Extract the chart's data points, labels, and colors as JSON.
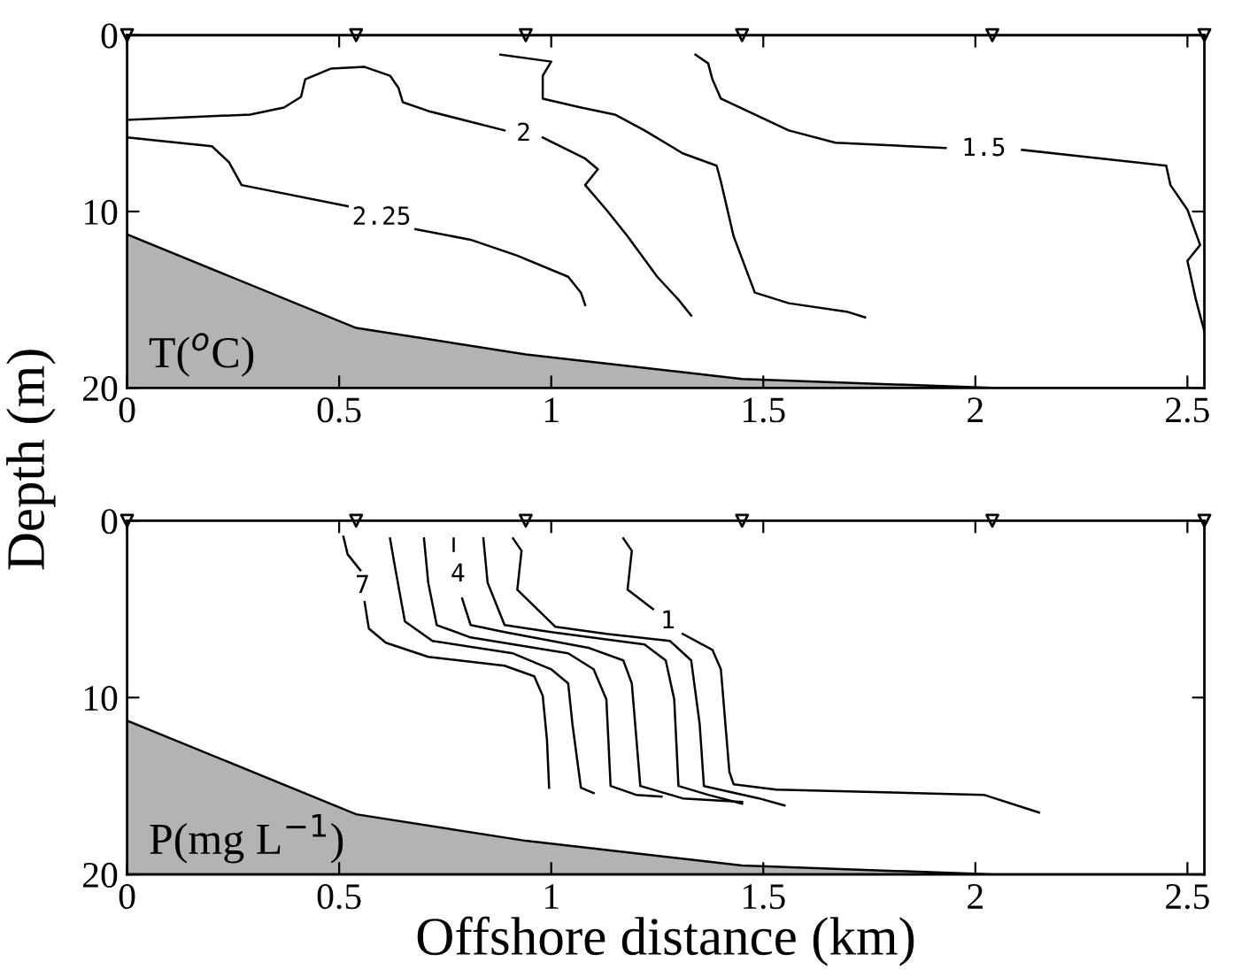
{
  "chart_data": [
    {
      "type": "line",
      "ylabel": "Depth (m)",
      "xlim": [
        0,
        2.54
      ],
      "ylim": [
        20,
        0
      ],
      "xticks": [
        0,
        0.5,
        1,
        1.5,
        2,
        2.5
      ],
      "yticks": [
        0,
        10,
        20
      ],
      "annotations": [
        "T($^{o}$C)",
        {
          "text": "2",
          "x": 0.89,
          "y": 5.4
        },
        {
          "text": "2.25",
          "x": 0.52,
          "y": 9.7
        },
        {
          "text": "1.5",
          "x": 1.93,
          "y": 6.4
        }
      ],
      "series": [
        {
          "type": "area",
          "color": "#b3b3b3",
          "x": [
            0,
            0,
            0.54,
            0.94,
            1.45,
            2.04,
            2.54
          ],
          "values": [
            20,
            11.3,
            16.6,
            18.1,
            19.5,
            20,
            20
          ]
        },
        {
          "type": "scatter",
          "marker": "triangle",
          "color": "#000000",
          "x": [
            0,
            0.54,
            0.94,
            1.45,
            2.04,
            2.54
          ],
          "values": [
            0,
            0,
            0,
            0,
            0,
            0
          ]
        },
        {
          "color": "#000000",
          "x": [
            0,
            0.2,
            0.24,
            0.27,
            0.52,
            0.6,
            0.68,
            0.81,
            0.92,
            1.04,
            1.07,
            1.08
          ],
          "values": [
            5.8,
            6.3,
            7.2,
            8.5,
            9.7,
            null,
            11.0,
            11.6,
            12.5,
            13.7,
            14.6,
            15.3
          ]
        },
        {
          "color": "#000000",
          "x": [
            0,
            0.29,
            0.37,
            0.41,
            0.42,
            0.48,
            0.56,
            0.62,
            0.64,
            0.65,
            0.71,
            0.89,
            0.935,
            0.98,
            1.08,
            1.11,
            1.08,
            1.13,
            1.18,
            1.25,
            1.3,
            1.33
          ],
          "values": [
            4.8,
            4.5,
            4.1,
            3.5,
            2.5,
            1.9,
            1.8,
            2.3,
            3.0,
            3.8,
            4.3,
            5.4,
            null,
            5.8,
            7.0,
            7.6,
            8.5,
            9.9,
            11.4,
            13.7,
            15.0,
            15.9
          ]
        },
        {
          "color": "#000000",
          "x": [
            0.88,
            1.0,
            0.98,
            0.98,
            1.07,
            1.15,
            1.22,
            1.31,
            1.39,
            1.4,
            1.43,
            1.48,
            1.56,
            1.7,
            1.74
          ],
          "values": [
            1.1,
            1.5,
            2.3,
            3.6,
            4.1,
            4.5,
            5.4,
            6.7,
            7.4,
            8.3,
            11.4,
            14.6,
            15.2,
            15.7,
            16.0
          ]
        },
        {
          "color": "#000000",
          "x": [
            1.34,
            1.37,
            1.38,
            1.4,
            1.48,
            1.56,
            1.67,
            1.93,
            2.02,
            2.11,
            2.45,
            2.46,
            2.5,
            2.53,
            2.5,
            2.52,
            2.54
          ],
          "values": [
            1.1,
            1.6,
            2.5,
            3.6,
            4.5,
            5.4,
            6.1,
            6.4,
            null,
            6.5,
            7.4,
            8.5,
            9.9,
            11.9,
            12.8,
            15.0,
            16.8
          ]
        }
      ]
    },
    {
      "type": "line",
      "xlabel": "Offshore distance (km)",
      "xlim": [
        0,
        2.54
      ],
      "ylim": [
        20,
        0
      ],
      "xticks": [
        0,
        0.5,
        1,
        1.5,
        2,
        2.5
      ],
      "yticks": [
        0,
        10,
        20
      ],
      "annotations": [
        "P(mg L$^{−1}$)",
        {
          "text": "7",
          "x": 0.55,
          "y": 2.8
        },
        {
          "text": "4",
          "x": 0.77,
          "y": 1.7
        },
        {
          "text": "1",
          "x": 1.24,
          "y": 5.0
        }
      ],
      "series": [
        {
          "type": "area",
          "color": "#b3b3b3",
          "x": [
            0,
            0,
            0.54,
            0.94,
            1.45,
            2.04,
            2.54
          ],
          "values": [
            20,
            11.3,
            16.6,
            18.1,
            19.5,
            20,
            20
          ]
        },
        {
          "type": "scatter",
          "marker": "triangle",
          "color": "#000000",
          "x": [
            0,
            0.54,
            0.94,
            1.45,
            2.04,
            2.54
          ],
          "values": [
            0,
            0,
            0,
            0,
            0,
            0
          ]
        },
        {
          "color": "#000000",
          "x": [
            0.51,
            0.52,
            0.55,
            0.555,
            0.56,
            0.57,
            0.61,
            0.71,
            0.89,
            0.96,
            0.98,
            0.99,
            0.995
          ],
          "values": [
            0.9,
            1.9,
            2.8,
            null,
            4.6,
            6.1,
            6.9,
            7.7,
            8.2,
            8.8,
            9.9,
            12.4,
            15.1
          ]
        },
        {
          "color": "#000000",
          "x": [
            0.62,
            0.63,
            0.655,
            0.72,
            0.91,
            1.0,
            1.04,
            1.05,
            1.07,
            1.1
          ],
          "values": [
            1.0,
            2.4,
            5.7,
            6.8,
            7.5,
            8.4,
            9.2,
            11.5,
            15.1,
            15.4
          ]
        },
        {
          "color": "#000000",
          "x": [
            0.7,
            0.71,
            0.73,
            0.81,
            1.04,
            1.1,
            1.13,
            1.14,
            1.2,
            1.26
          ],
          "values": [
            1.0,
            3.5,
            5.9,
            6.6,
            7.5,
            8.4,
            10.1,
            15.0,
            15.5,
            15.6
          ]
        },
        {
          "color": "#000000",
          "x": [
            0.77,
            0.77,
            0.78,
            0.79,
            0.81,
            0.89,
            1.09,
            1.17,
            1.19,
            1.21,
            1.31,
            1.45
          ],
          "values": [
            1.0,
            1.7,
            null,
            4.4,
            5.9,
            6.3,
            7.2,
            7.9,
            9.2,
            15.0,
            15.7,
            15.9
          ]
        },
        {
          "color": "#000000",
          "x": [
            0.84,
            0.85,
            0.89,
            1.0,
            1.22,
            1.27,
            1.29,
            1.3,
            1.37,
            1.45
          ],
          "values": [
            1.0,
            3.5,
            5.9,
            6.3,
            7.0,
            7.9,
            10.1,
            15.0,
            15.5,
            16.0
          ]
        },
        {
          "color": "#000000",
          "x": [
            0.91,
            0.93,
            0.92,
            1.01,
            1.13,
            1.28,
            1.33,
            1.35,
            1.36,
            1.49,
            1.55
          ],
          "values": [
            1.0,
            1.7,
            3.9,
            6.0,
            6.4,
            6.8,
            7.9,
            11.5,
            15.0,
            15.7,
            16.1
          ]
        },
        {
          "color": "#000000",
          "x": [
            1.17,
            1.19,
            1.18,
            1.24,
            1.27,
            1.31,
            1.38,
            1.4,
            1.42,
            1.43,
            1.53,
            2.02,
            2.15
          ],
          "values": [
            1.0,
            1.7,
            3.9,
            5.0,
            null,
            6.4,
            7.3,
            8.4,
            14.2,
            14.9,
            15.2,
            15.5,
            16.5
          ]
        }
      ]
    }
  ]
}
